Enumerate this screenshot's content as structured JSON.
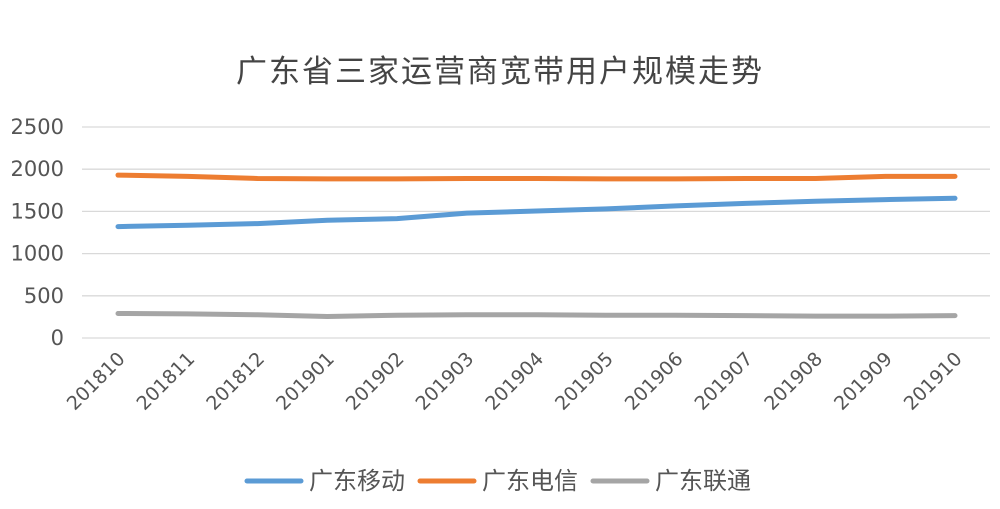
{
  "chart_data": {
    "type": "line",
    "title": "广东省三家运营商宽带用户规模走势",
    "xlabel": "",
    "ylabel": "",
    "categories": [
      "201810",
      "201811",
      "201812",
      "201901",
      "201902",
      "201903",
      "201904",
      "201905",
      "201906",
      "201907",
      "201908",
      "201909",
      "201910"
    ],
    "ylim": [
      0,
      2500
    ],
    "yticks": [
      0,
      500,
      1000,
      1500,
      2000,
      2500
    ],
    "grid": true,
    "legend_position": "bottom",
    "series": [
      {
        "name": "广东移动",
        "color": "#5b9bd5",
        "values": [
          1320,
          1335,
          1355,
          1395,
          1415,
          1480,
          1505,
          1530,
          1565,
          1595,
          1620,
          1640,
          1655
        ]
      },
      {
        "name": "广东电信",
        "color": "#ed7d31",
        "values": [
          1930,
          1915,
          1890,
          1885,
          1885,
          1890,
          1890,
          1885,
          1885,
          1890,
          1890,
          1915,
          1915
        ]
      },
      {
        "name": "广东联通",
        "color": "#a5a5a5",
        "values": [
          290,
          285,
          275,
          255,
          270,
          275,
          275,
          270,
          270,
          265,
          260,
          260,
          265
        ]
      }
    ]
  }
}
